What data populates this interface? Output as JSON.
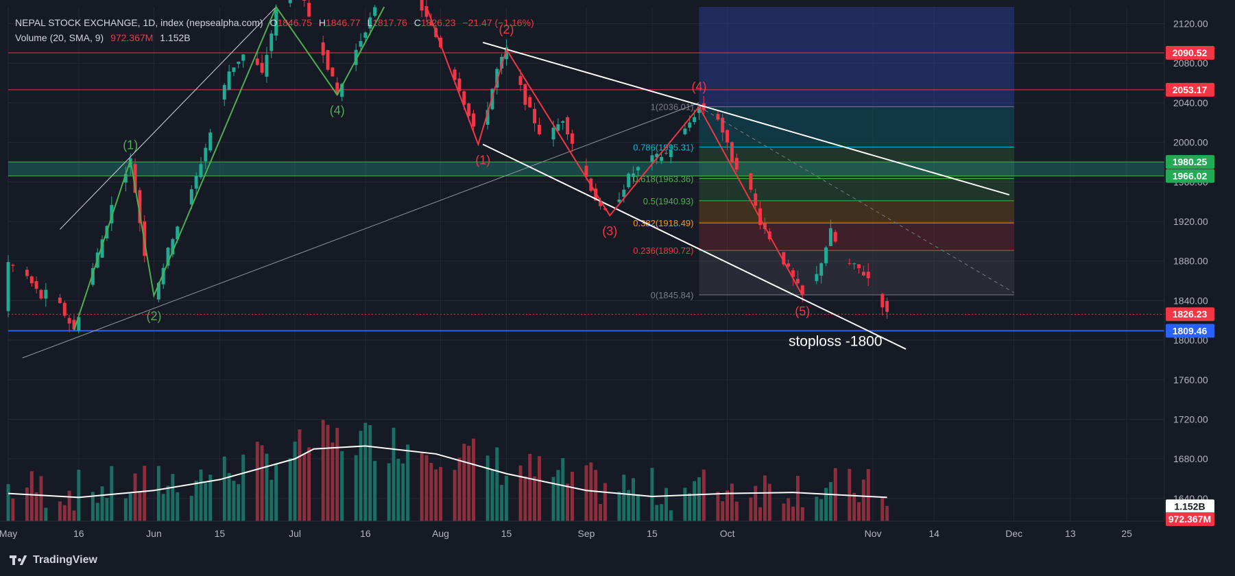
{
  "legend": {
    "title": "NEPAL STOCK EXCHANGE, 1D, index (nepsealpha.com)",
    "ohlc": {
      "o_label": "O",
      "o": "1846.75",
      "h_label": "H",
      "h": "1846.77",
      "l_label": "L",
      "l": "1817.76",
      "c_label": "C",
      "c": "1826.23",
      "chg": "−21.47 (−1.16%)"
    },
    "volume_label": "Volume (20, SMA, 9)",
    "vol_sma": "972.367M",
    "vol": "1.152B"
  },
  "brand": {
    "name": "TradingView"
  },
  "colors": {
    "bg": "#161a25",
    "grid": "#242833",
    "up": "#22ab94",
    "down": "#f23645",
    "vol_up": "#1a6e62",
    "vol_down": "#8c2f3c",
    "axis_text": "#b2b5be"
  },
  "chart_data": {
    "type": "candlestick",
    "y_axis": {
      "ticks": [
        "2120.00",
        "2080.00",
        "2040.00",
        "2000.00",
        "1960.00",
        "1920.00",
        "1880.00",
        "1840.00",
        "1800.00",
        "1760.00",
        "1720.00",
        "1680.00",
        "1640.00"
      ],
      "range": [
        1617,
        2137
      ]
    },
    "x_axis": {
      "ticks": [
        {
          "label": "May",
          "date": "2024-05-01"
        },
        {
          "label": "16",
          "date": "2024-05-16"
        },
        {
          "label": "Jun",
          "date": "2024-06-01"
        },
        {
          "label": "15",
          "date": "2024-06-15"
        },
        {
          "label": "Jul",
          "date": "2024-07-01"
        },
        {
          "label": "16",
          "date": "2024-07-16"
        },
        {
          "label": "Aug",
          "date": "2024-08-01"
        },
        {
          "label": "15",
          "date": "2024-08-15"
        },
        {
          "label": "Sep",
          "date": "2024-09-01"
        },
        {
          "label": "15",
          "date": "2024-09-15"
        },
        {
          "label": "Oct",
          "date": "2024-10-01"
        },
        {
          "label": "Nov",
          "date": "2024-11-01"
        },
        {
          "label": "14",
          "date": "2024-11-14"
        },
        {
          "label": "Dec",
          "date": "2024-12-01"
        },
        {
          "label": "13",
          "date": "2024-12-13"
        },
        {
          "label": "25",
          "date": "2024-12-25"
        }
      ],
      "range": [
        "2024-05-01",
        "2025-01-02"
      ]
    },
    "price_path": [
      [
        "2024-05-01",
        1878
      ],
      [
        "2024-05-05",
        1864
      ],
      [
        "2024-05-08",
        1843
      ],
      [
        "2024-05-10",
        1852
      ],
      [
        "2024-05-13",
        1826
      ],
      [
        "2024-05-15",
        1810
      ],
      [
        "2024-05-18",
        1858
      ],
      [
        "2024-05-21",
        1902
      ],
      [
        "2024-05-24",
        1952
      ],
      [
        "2024-05-27",
        1982
      ],
      [
        "2024-05-30",
        1888
      ],
      [
        "2024-06-01",
        1845
      ],
      [
        "2024-06-05",
        1905
      ],
      [
        "2024-06-09",
        1950
      ],
      [
        "2024-06-13",
        2010
      ],
      [
        "2024-06-17",
        2072
      ],
      [
        "2024-06-21",
        2094
      ],
      [
        "2024-06-24",
        2068
      ],
      [
        "2024-06-27",
        2132
      ],
      [
        "2024-07-01",
        2152
      ],
      [
        "2024-07-03",
        2140
      ],
      [
        "2024-07-07",
        2092
      ],
      [
        "2024-07-10",
        2048
      ],
      [
        "2024-07-13",
        2082
      ],
      [
        "2024-07-16",
        2115
      ],
      [
        "2024-07-20",
        2152
      ],
      [
        "2024-07-25",
        2165
      ],
      [
        "2024-07-29",
        2125
      ],
      [
        "2024-08-01",
        2098
      ],
      [
        "2024-08-05",
        2055
      ],
      [
        "2024-08-09",
        1998
      ],
      [
        "2024-08-13",
        2073
      ],
      [
        "2024-08-15",
        2094
      ],
      [
        "2024-08-19",
        2042
      ],
      [
        "2024-08-23",
        2000
      ],
      [
        "2024-08-27",
        2024
      ],
      [
        "2024-08-31",
        1976
      ],
      [
        "2024-09-04",
        1932
      ],
      [
        "2024-09-06",
        1926
      ],
      [
        "2024-09-10",
        1965
      ],
      [
        "2024-09-14",
        1982
      ],
      [
        "2024-09-18",
        1988
      ],
      [
        "2024-09-22",
        2012
      ],
      [
        "2024-09-25",
        2036
      ],
      [
        "2024-09-29",
        2025
      ],
      [
        "2024-10-02",
        1982
      ],
      [
        "2024-10-05",
        1965
      ],
      [
        "2024-10-08",
        1920
      ],
      [
        "2024-10-12",
        1888
      ],
      [
        "2024-10-17",
        1845
      ],
      [
        "2024-10-20",
        1865
      ],
      [
        "2024-10-23",
        1910
      ],
      [
        "2024-10-26",
        1878
      ],
      [
        "2024-10-29",
        1872
      ],
      [
        "2024-11-01",
        1858
      ],
      [
        "2024-11-04",
        1826
      ]
    ],
    "volume_sma_path": [
      [
        "2024-05-01",
        1645
      ],
      [
        "2024-05-16",
        1641
      ],
      [
        "2024-06-01",
        1648
      ],
      [
        "2024-06-15",
        1659
      ],
      [
        "2024-07-01",
        1680
      ],
      [
        "2024-07-05",
        1690
      ],
      [
        "2024-07-16",
        1693
      ],
      [
        "2024-07-31",
        1685
      ],
      [
        "2024-08-15",
        1665
      ],
      [
        "2024-09-01",
        1648
      ],
      [
        "2024-09-15",
        1642
      ],
      [
        "2024-10-01",
        1645
      ],
      [
        "2024-10-15",
        1646
      ],
      [
        "2024-11-04",
        1641
      ]
    ],
    "h_lines": [
      {
        "price": 2090.52,
        "label": "2090.52",
        "color": "#f23645"
      },
      {
        "price": 2053.17,
        "label": "2053.17",
        "color": "#f23645"
      },
      {
        "price": 1809.46,
        "label": "1809.46",
        "color": "#2962ff"
      }
    ],
    "support_zone": {
      "top": 1980.25,
      "bottom": 1966.02,
      "labels": [
        "1980.25",
        "1966.02"
      ],
      "color": "#22ab94"
    },
    "last_price": {
      "price": 1826.23,
      "label": "1826.23"
    },
    "vol_labels": [
      {
        "label": "1.152B",
        "value": 1632,
        "bg": "#ffffff",
        "fg": "#131722"
      },
      {
        "label": "972.367M",
        "value": 1619,
        "bg": "#f23645",
        "fg": "#ffffff"
      }
    ],
    "fib": {
      "x0": "2024-09-25",
      "x1": "2024-12-01",
      "levels": [
        {
          "ratio": "1",
          "price": 2036.01,
          "label": "1(2036.01)",
          "color": "#787b86"
        },
        {
          "ratio": "0.786",
          "price": 1995.31,
          "label": "0.786(1995.31)",
          "color": "#00bcd4"
        },
        {
          "ratio": "0.618",
          "price": 1963.36,
          "label": "0.618(1963.36)",
          "color": "#4caf50"
        },
        {
          "ratio": "0.5",
          "price": 1940.93,
          "label": "0.5(1940.93)",
          "color": "#4caf50"
        },
        {
          "ratio": "0.382",
          "price": 1918.49,
          "label": "0.382(1918.49)",
          "color": "#ff9800"
        },
        {
          "ratio": "0.236",
          "price": 1890.72,
          "label": "0.236(1890.72)",
          "color": "#f23645"
        },
        {
          "ratio": "0",
          "price": 1845.84,
          "label": "0(1845.84)",
          "color": "#787b86"
        }
      ]
    },
    "target_box": {
      "x0": "2024-09-25",
      "x1": "2024-12-01",
      "top": 2137,
      "bottom": 2036
    },
    "trend_lines": [
      {
        "p1": [
          "2024-05-04",
          1782
        ],
        "p2": [
          "2024-09-25",
          2040
        ],
        "color": "#9598a1"
      },
      {
        "p1": [
          "2024-05-12",
          1912
        ],
        "p2": [
          "2024-06-27",
          2137
        ],
        "color": "#d1d4dc"
      },
      {
        "p1": [
          "2024-08-10",
          2101
        ],
        "p2": [
          "2024-11-30",
          1947
        ],
        "color": "#ffffff"
      },
      {
        "p1": [
          "2024-08-10",
          1998
        ],
        "p2": [
          "2024-11-08",
          1791
        ],
        "color": "#ffffff"
      }
    ],
    "dashed_line": {
      "p1": [
        "2024-09-25",
        2036
      ],
      "p2": [
        "2024-12-01",
        1848
      ]
    },
    "elliott_up": [
      [
        "2024-05-15",
        1810
      ],
      [
        "2024-05-27",
        1982
      ],
      [
        "2024-06-01",
        1845
      ],
      [
        "2024-06-27",
        2137
      ],
      [
        "2024-07-10",
        2048
      ],
      [
        "2024-07-20",
        2137
      ]
    ],
    "elliott_down": [
      [
        "2024-07-29",
        2137
      ],
      [
        "2024-08-09",
        1998
      ],
      [
        "2024-08-15",
        2094
      ],
      [
        "2024-09-06",
        1926
      ],
      [
        "2024-09-25",
        2036
      ],
      [
        "2024-10-17",
        1845
      ]
    ],
    "wave_labels_up": [
      {
        "text": "(1)",
        "date": "2024-05-27",
        "price": 1993
      },
      {
        "text": "(2)",
        "date": "2024-06-01",
        "price": 1820
      },
      {
        "text": "(4)",
        "date": "2024-07-10",
        "price": 2028
      }
    ],
    "wave_labels_down": [
      {
        "text": "(2)",
        "date": "2024-08-15",
        "price": 2110
      },
      {
        "text": "(1)",
        "date": "2024-08-10",
        "price": 1978
      },
      {
        "text": "(3)",
        "date": "2024-09-06",
        "price": 1906
      },
      {
        "text": "(4)",
        "date": "2024-09-25",
        "price": 2052
      },
      {
        "text": "(5)",
        "date": "2024-10-17",
        "price": 1825
      }
    ],
    "annotation": {
      "text": "stoploss -1800",
      "date": "2024-10-24",
      "price": 1794
    }
  }
}
